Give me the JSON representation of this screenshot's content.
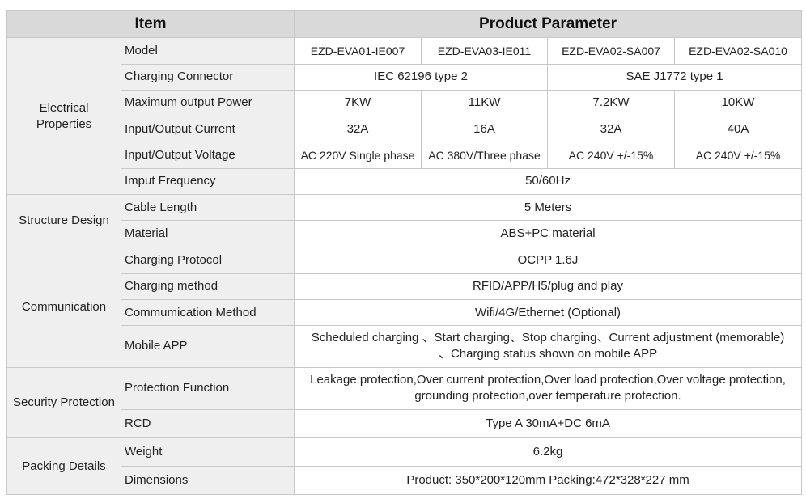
{
  "header": {
    "item": "Item",
    "product_parameter": "Product Parameter"
  },
  "rows": {
    "model": {
      "label": "Model",
      "values": [
        "EZD-EVA01-IE007",
        "EZD-EVA03-IE011",
        "EZD-EVA02-SA007",
        "EZD-EVA02-SA010"
      ]
    },
    "connector": {
      "label": "Charging Connector",
      "values": [
        "IEC 62196 type 2",
        "SAE J1772 type 1"
      ]
    },
    "power": {
      "label": "Maximum output Power",
      "values": [
        "7KW",
        "11KW",
        "7.2KW",
        "10KW"
      ]
    },
    "current": {
      "label": "Input/Output Current",
      "values": [
        "32A",
        "16A",
        "32A",
        "40A"
      ]
    },
    "voltage": {
      "label": "Input/Output Voltage",
      "values": [
        "AC 220V Single phase",
        "AC 380V/Three  phase",
        "AC 240V +/-15%",
        "AC 240V +/-15%"
      ]
    },
    "frequency": {
      "label": "Imput Frequency",
      "value": "50/60Hz"
    },
    "cable": {
      "label": "Cable Length",
      "value": "5 Meters"
    },
    "material": {
      "label": "Material",
      "value": "ABS+PC material"
    },
    "protocol": {
      "label": "Charging Protocol",
      "value": "OCPP 1.6J"
    },
    "method": {
      "label": "Charging method",
      "value": "RFID/APP/H5/plug and play"
    },
    "comm": {
      "label": "Commumication Method",
      "value": "Wifi/4G/Ethernet (Optional)"
    },
    "app": {
      "label": "Mobile APP",
      "line1": "Scheduled charging 、Start charging、Stop charging、Current adjustment (memorable)",
      "line2": "、Charging status shown on mobile APP"
    },
    "protection": {
      "label": "Protection Function",
      "line1": "Leakage protection,Over current protection,Over load protection,Over voltage protection,",
      "line2": "grounding protection,over temperature protection."
    },
    "rcd": {
      "label": "RCD",
      "value": "Type A 30mA+DC 6mA"
    },
    "weight": {
      "label": "Weight",
      "value": "6.2kg"
    },
    "dimensions": {
      "label": "Dimensions",
      "value": "Product: 350*200*120mm Packing:472*328*227 mm"
    }
  },
  "categories": {
    "electrical_line1": "Electrical",
    "electrical_line2": "Properties",
    "structure": "Structure Design",
    "communication": "Communication",
    "security": "Security Protection",
    "packing": "Packing Details"
  }
}
